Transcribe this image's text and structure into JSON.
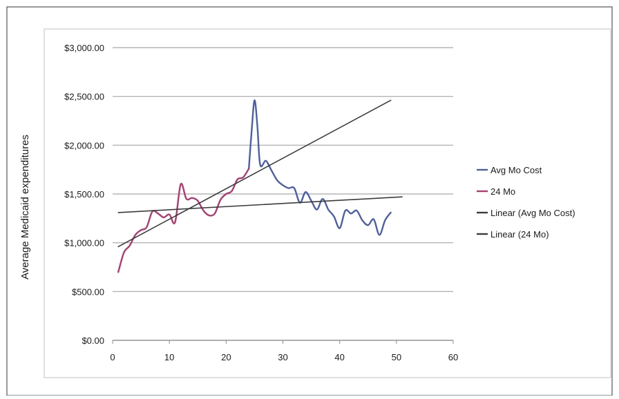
{
  "chart_data": {
    "type": "line",
    "title": "",
    "xlabel": "",
    "ylabel": "Average Medicaid expenditures",
    "xlim": [
      0,
      60
    ],
    "ylim": [
      0,
      3000
    ],
    "x_ticks": [
      0,
      10,
      20,
      30,
      40,
      50,
      60
    ],
    "x_tick_labels": [
      "0",
      "10",
      "20",
      "30",
      "40",
      "50",
      "60"
    ],
    "y_ticks": [
      0,
      500,
      1000,
      1500,
      2000,
      2500,
      3000
    ],
    "y_tick_labels": [
      "$0.00",
      "$500.00",
      "$1,000.00",
      "$1,500.00",
      "$2,000.00",
      "$2,500.00",
      "$3,000.00"
    ],
    "grid": "horizontal",
    "legend_position": "right",
    "series": [
      {
        "name": "Avg Mo Cost",
        "color": "#4a5fa8",
        "x": [
          24,
          24.5,
          25,
          25.5,
          26,
          27,
          28,
          29,
          30,
          31,
          32,
          33,
          34,
          35,
          36,
          37,
          38,
          39,
          40,
          41,
          42,
          43,
          44,
          45,
          46,
          47,
          48,
          49
        ],
        "values": [
          1760,
          2150,
          2460,
          2200,
          1800,
          1840,
          1740,
          1640,
          1590,
          1560,
          1560,
          1410,
          1520,
          1430,
          1340,
          1450,
          1340,
          1270,
          1150,
          1330,
          1300,
          1330,
          1230,
          1180,
          1240,
          1080,
          1230,
          1310
        ]
      },
      {
        "name": "24 Mo",
        "color": "#b03a6e",
        "x": [
          1,
          2,
          3,
          4,
          5,
          6,
          7,
          8,
          9,
          10,
          11,
          12,
          13,
          14,
          15,
          16,
          17,
          18,
          19,
          20,
          21,
          22,
          23,
          24
        ],
        "values": [
          700,
          900,
          970,
          1080,
          1130,
          1160,
          1320,
          1300,
          1260,
          1290,
          1210,
          1600,
          1450,
          1460,
          1430,
          1330,
          1280,
          1300,
          1440,
          1500,
          1530,
          1650,
          1670,
          1760
        ]
      },
      {
        "name": "Linear (Avg Mo Cost)",
        "color": "#3b3b3b",
        "x": [
          1,
          49
        ],
        "values": [
          960,
          2460
        ]
      },
      {
        "name": "Linear (24 Mo)",
        "color": "#3b3b3b",
        "x": [
          1,
          51
        ],
        "values": [
          1310,
          1470
        ]
      }
    ]
  }
}
